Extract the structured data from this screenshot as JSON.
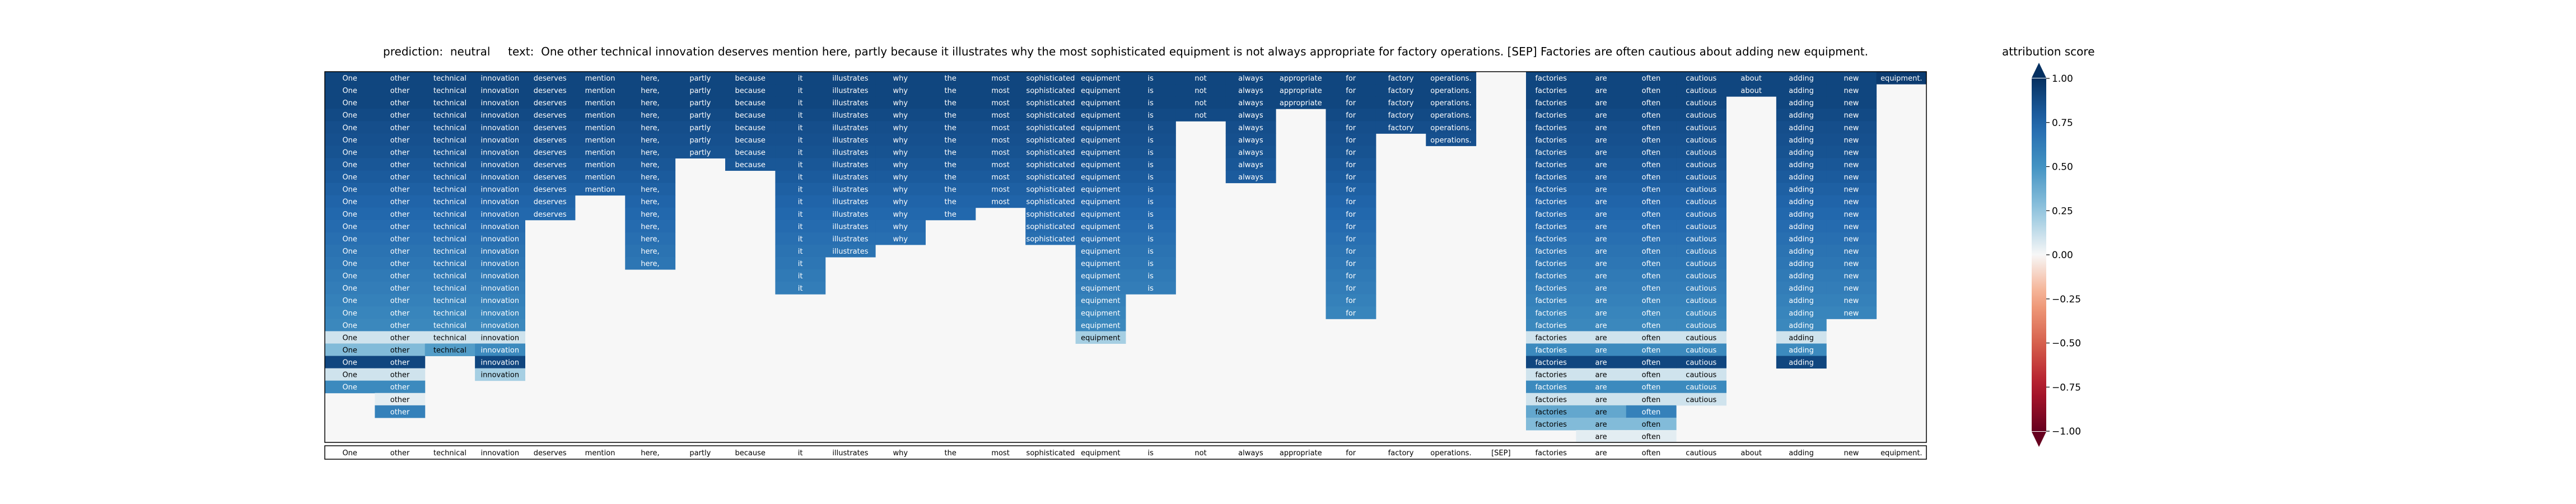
{
  "title": "prediction:  neutral     text:  One other technical innovation deserves mention here, partly because it illustrates why the most sophisticated equipment is not always appropriate for factory operations. [SEP] Factories are often cautious about adding new equipment.",
  "colorbar": {
    "title": "attribution score",
    "ticks": [
      "1.00",
      "0.75",
      "0.50",
      "0.25",
      "0.00",
      "−0.25",
      "−0.50",
      "−0.75",
      "−1.00"
    ],
    "tick_values": [
      1,
      0.75,
      0.5,
      0.25,
      0,
      -0.25,
      -0.5,
      -0.75,
      -1
    ],
    "colormap": "RdBu",
    "range": [
      -1,
      1
    ],
    "extend": "both"
  },
  "chart_data": {
    "type": "heatmap",
    "title": "prediction:  neutral     text:  One other technical innovation deserves mention here, partly because it illustrates why the most sophisticated equipment is not always appropriate for factory operations. [SEP] Factories are often cautious about adding new equipment.",
    "prediction": "neutral",
    "tokens": [
      "One",
      "other",
      "technical",
      "innovation",
      "deserves",
      "mention",
      "here,",
      "partly",
      "because",
      "it",
      "illustrates",
      "why",
      "the",
      "most",
      "sophisticated",
      "equipment",
      "is",
      "not",
      "always",
      "appropriate",
      "for",
      "factory",
      "operations.",
      "[SEP]",
      "factories",
      "are",
      "often",
      "cautious",
      "about",
      "adding",
      "new",
      "equipment."
    ],
    "x_tick_labels": [
      "One",
      "other",
      "technical",
      "innovation",
      "deserves",
      "mention",
      "here,",
      "partly",
      "because",
      "it",
      "illustrates",
      "why",
      "the",
      "most",
      "sophisticated",
      "equipment",
      "is",
      "not",
      "always",
      "appropriate",
      "for",
      "factory",
      "operations.",
      "[SEP]",
      "factories",
      "are",
      "often",
      "cautious",
      "about",
      "adding",
      "new",
      "equipment."
    ],
    "n_rows": 30,
    "value_range": [
      -1,
      1
    ],
    "grid": false,
    "columns": [
      {
        "token": "One",
        "start": 0,
        "values": [
          0.9,
          0.9,
          0.9,
          0.88,
          0.86,
          0.85,
          0.84,
          0.82,
          0.8,
          0.78,
          0.76,
          0.74,
          0.72,
          0.7,
          0.68,
          0.66,
          0.64,
          0.62,
          0.6,
          0.58,
          0.56,
          0.1,
          0.3,
          0.9,
          0.1,
          0.55
        ]
      },
      {
        "token": "other",
        "start": 0,
        "values": [
          0.9,
          0.9,
          0.9,
          0.88,
          0.86,
          0.85,
          0.84,
          0.82,
          0.8,
          0.78,
          0.76,
          0.74,
          0.72,
          0.7,
          0.68,
          0.66,
          0.64,
          0.62,
          0.6,
          0.58,
          0.56,
          0.1,
          0.3,
          0.9,
          0.1,
          0.55,
          0.05,
          0.6
        ]
      },
      {
        "token": "technical",
        "start": 0,
        "values": [
          0.9,
          0.9,
          0.9,
          0.88,
          0.86,
          0.85,
          0.84,
          0.82,
          0.8,
          0.78,
          0.76,
          0.74,
          0.72,
          0.7,
          0.68,
          0.66,
          0.64,
          0.62,
          0.6,
          0.58,
          0.56,
          0.1,
          0.45
        ]
      },
      {
        "token": "innovation",
        "start": 0,
        "values": [
          0.9,
          0.9,
          0.9,
          0.88,
          0.86,
          0.85,
          0.84,
          0.82,
          0.8,
          0.78,
          0.76,
          0.74,
          0.72,
          0.7,
          0.68,
          0.66,
          0.64,
          0.62,
          0.6,
          0.58,
          0.56,
          0.1,
          0.55,
          0.9,
          0.2
        ]
      },
      {
        "token": "deserves",
        "start": 0,
        "values": [
          0.9,
          0.9,
          0.9,
          0.88,
          0.86,
          0.85,
          0.84,
          0.82,
          0.8,
          0.78,
          0.76,
          0.74
        ]
      },
      {
        "token": "mention",
        "start": 0,
        "values": [
          0.9,
          0.9,
          0.9,
          0.88,
          0.86,
          0.85,
          0.84,
          0.82,
          0.8,
          0.78
        ]
      },
      {
        "token": "here,",
        "start": 0,
        "values": [
          0.9,
          0.9,
          0.9,
          0.88,
          0.86,
          0.85,
          0.84,
          0.82,
          0.8,
          0.78,
          0.76,
          0.74,
          0.72,
          0.7,
          0.68,
          0.66
        ]
      },
      {
        "token": "partly",
        "start": 0,
        "values": [
          0.9,
          0.9,
          0.9,
          0.88,
          0.86,
          0.85,
          0.84
        ]
      },
      {
        "token": "because",
        "start": 0,
        "values": [
          0.9,
          0.9,
          0.9,
          0.88,
          0.86,
          0.85,
          0.84,
          0.82
        ]
      },
      {
        "token": "it",
        "start": 0,
        "values": [
          0.9,
          0.9,
          0.9,
          0.88,
          0.86,
          0.85,
          0.84,
          0.82,
          0.8,
          0.78,
          0.76,
          0.74,
          0.72,
          0.7,
          0.68,
          0.66,
          0.64,
          0.62
        ]
      },
      {
        "token": "illustrates",
        "start": 0,
        "values": [
          0.9,
          0.9,
          0.9,
          0.88,
          0.86,
          0.85,
          0.84,
          0.82,
          0.8,
          0.78,
          0.76,
          0.74,
          0.72,
          0.7,
          0.68
        ]
      },
      {
        "token": "why",
        "start": 0,
        "values": [
          0.9,
          0.9,
          0.9,
          0.88,
          0.86,
          0.85,
          0.84,
          0.82,
          0.8,
          0.78,
          0.76,
          0.74,
          0.72,
          0.7
        ]
      },
      {
        "token": "the",
        "start": 0,
        "values": [
          0.9,
          0.9,
          0.9,
          0.88,
          0.86,
          0.85,
          0.84,
          0.82,
          0.8,
          0.78,
          0.76,
          0.74
        ]
      },
      {
        "token": "most",
        "start": 0,
        "values": [
          0.9,
          0.9,
          0.9,
          0.88,
          0.86,
          0.85,
          0.84,
          0.82,
          0.8,
          0.78,
          0.76
        ]
      },
      {
        "token": "sophisticated",
        "start": 0,
        "values": [
          0.9,
          0.9,
          0.9,
          0.88,
          0.86,
          0.85,
          0.84,
          0.82,
          0.8,
          0.78,
          0.76,
          0.74,
          0.72,
          0.7
        ]
      },
      {
        "token": "equipment",
        "start": 0,
        "values": [
          0.9,
          0.9,
          0.9,
          0.88,
          0.86,
          0.85,
          0.84,
          0.82,
          0.8,
          0.78,
          0.76,
          0.74,
          0.72,
          0.7,
          0.68,
          0.66,
          0.64,
          0.62,
          0.6,
          0.58,
          0.56,
          0.2
        ]
      },
      {
        "token": "is",
        "start": 0,
        "values": [
          0.9,
          0.9,
          0.9,
          0.88,
          0.86,
          0.85,
          0.84,
          0.82,
          0.8,
          0.78,
          0.76,
          0.74,
          0.72,
          0.7,
          0.68,
          0.66,
          0.64,
          0.62
        ]
      },
      {
        "token": "not",
        "start": 0,
        "values": [
          0.9,
          0.9,
          0.9,
          0.88
        ]
      },
      {
        "token": "always",
        "start": 0,
        "values": [
          0.9,
          0.9,
          0.9,
          0.88,
          0.86,
          0.85,
          0.84,
          0.82,
          0.8
        ]
      },
      {
        "token": "appropriate",
        "start": 0,
        "values": [
          0.9,
          0.9,
          0.9
        ]
      },
      {
        "token": "for",
        "start": 0,
        "values": [
          0.9,
          0.9,
          0.9,
          0.88,
          0.86,
          0.85,
          0.84,
          0.82,
          0.8,
          0.78,
          0.76,
          0.74,
          0.72,
          0.7,
          0.68,
          0.66,
          0.64,
          0.62,
          0.6,
          0.58
        ]
      },
      {
        "token": "factory",
        "start": 0,
        "values": [
          0.9,
          0.9,
          0.9,
          0.88,
          0.86
        ]
      },
      {
        "token": "operations.",
        "start": 0,
        "values": [
          0.9,
          0.9,
          0.9,
          0.88,
          0.86,
          0.85
        ]
      },
      {
        "token": "[SEP]",
        "start": 0,
        "values": []
      },
      {
        "token": "factories",
        "start": 0,
        "values": [
          0.9,
          0.9,
          0.9,
          0.88,
          0.86,
          0.85,
          0.84,
          0.82,
          0.8,
          0.78,
          0.76,
          0.74,
          0.72,
          0.7,
          0.68,
          0.66,
          0.64,
          0.62,
          0.6,
          0.58,
          0.56,
          0.1,
          0.55,
          0.9,
          0.1,
          0.55,
          0.1,
          0.4,
          0.3
        ]
      },
      {
        "token": "are",
        "start": 0,
        "values": [
          0.9,
          0.9,
          0.9,
          0.88,
          0.86,
          0.85,
          0.84,
          0.82,
          0.8,
          0.78,
          0.76,
          0.74,
          0.72,
          0.7,
          0.68,
          0.66,
          0.64,
          0.62,
          0.6,
          0.58,
          0.56,
          0.1,
          0.55,
          0.9,
          0.1,
          0.55,
          0.1,
          0.4,
          0.3,
          0.05
        ]
      },
      {
        "token": "often",
        "start": 0,
        "values": [
          0.9,
          0.9,
          0.9,
          0.88,
          0.86,
          0.85,
          0.84,
          0.82,
          0.8,
          0.78,
          0.76,
          0.74,
          0.72,
          0.7,
          0.68,
          0.66,
          0.64,
          0.62,
          0.6,
          0.58,
          0.56,
          0.1,
          0.55,
          0.9,
          0.1,
          0.55,
          0.1,
          0.6,
          0.3,
          0.05
        ]
      },
      {
        "token": "cautious",
        "start": 0,
        "values": [
          0.9,
          0.9,
          0.9,
          0.88,
          0.86,
          0.85,
          0.84,
          0.82,
          0.8,
          0.78,
          0.76,
          0.74,
          0.72,
          0.7,
          0.68,
          0.66,
          0.64,
          0.62,
          0.6,
          0.58,
          0.56,
          0.1,
          0.55,
          0.9,
          0.1,
          0.55,
          0.1
        ]
      },
      {
        "token": "about",
        "start": 0,
        "values": [
          0.9,
          0.9
        ]
      },
      {
        "token": "adding",
        "start": 0,
        "values": [
          0.9,
          0.9,
          0.9,
          0.88,
          0.86,
          0.85,
          0.84,
          0.82,
          0.8,
          0.78,
          0.76,
          0.74,
          0.72,
          0.7,
          0.68,
          0.66,
          0.64,
          0.62,
          0.6,
          0.58,
          0.56,
          0.1,
          0.55,
          0.9
        ]
      },
      {
        "token": "new",
        "start": 0,
        "values": [
          0.9,
          0.9,
          0.9,
          0.88,
          0.86,
          0.85,
          0.84,
          0.82,
          0.8,
          0.78,
          0.76,
          0.74,
          0.72,
          0.7,
          0.68,
          0.66,
          0.64,
          0.62,
          0.6,
          0.58
        ]
      },
      {
        "token": "equipment.",
        "start": 0,
        "values": [
          0.95
        ]
      }
    ]
  }
}
